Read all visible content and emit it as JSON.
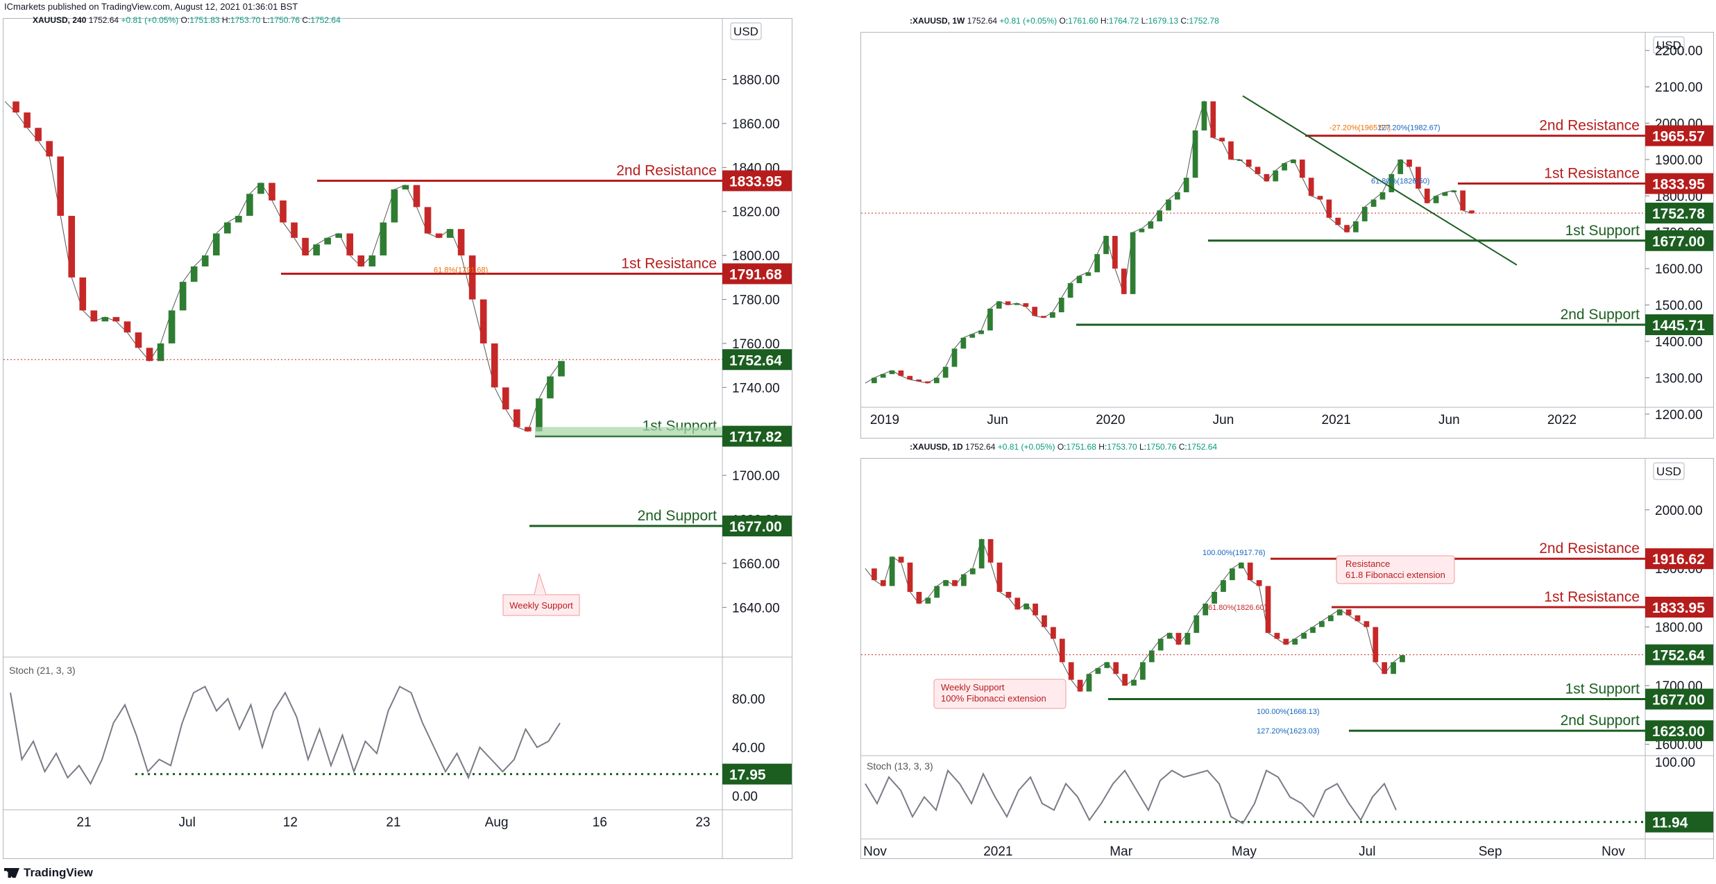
{
  "publisher_line": "ICmarkets published on TradingView.com, August 12, 2021 01:36:01 BST",
  "brand": "TradingView",
  "colors": {
    "red": "#b71c1c",
    "green": "#1b5e20",
    "zone": "#a5d6a7",
    "price_line": "#9e9e9e"
  },
  "charts": [
    {
      "id": "left",
      "symbol": "XAUUSD, 240",
      "ohlc": {
        "last": "1752.64",
        "chg": "+0.81 (+0.05%)",
        "o": "1751.83",
        "h": "1753.70",
        "l": "1750.76",
        "c": "1752.64"
      },
      "currency": "USD",
      "y_ticks": [
        "1880.00",
        "1860.00",
        "1840.00",
        "1820.00",
        "1800.00",
        "1780.00",
        "1760.00",
        "1740.00",
        "1720.00",
        "1700.00",
        "1680.00",
        "1660.00",
        "1640.00"
      ],
      "x_ticks": [
        "21",
        "Jul",
        "12",
        "21",
        "Aug",
        "16",
        "23"
      ],
      "osc_label": "Stoch (21, 3, 3)",
      "osc_ticks": [
        "80.00",
        "40.00",
        "0.00"
      ],
      "osc_level": "17.95",
      "levels": [
        {
          "label": "2nd Resistance",
          "value": "1833.95",
          "type": "res"
        },
        {
          "label": "1st Resistance",
          "value": "1791.68",
          "type": "res"
        },
        {
          "label": "1st Support",
          "value": "1717.82",
          "type": "sup"
        },
        {
          "label": "2nd Support",
          "value": "1677.00",
          "type": "sup"
        }
      ],
      "last_price": "1752.64",
      "callouts": [
        {
          "text": "Weekly Support"
        }
      ],
      "fib_labels": [
        "61.8%(1791.68)"
      ]
    },
    {
      "id": "weekly",
      "symbol": ":XAUUSD, 1W",
      "ohlc": {
        "last": "1752.64",
        "chg": "+0.81 (+0.05%)",
        "o": "1761.60",
        "h": "1764.72",
        "l": "1679.13",
        "c": "1752.78"
      },
      "currency": "USD",
      "y_ticks": [
        "2200.00",
        "2100.00",
        "2000.00",
        "1900.00",
        "1800.00",
        "1700.00",
        "1600.00",
        "1500.00",
        "1400.00",
        "1300.00",
        "1200.00"
      ],
      "x_ticks": [
        "2019",
        "Jun",
        "2020",
        "Jun",
        "2021",
        "Jun",
        "2022"
      ],
      "levels": [
        {
          "label": "2nd Resistance",
          "value": "1965.57",
          "type": "res"
        },
        {
          "label": "1st Resistance",
          "value": "1833.95",
          "type": "res"
        },
        {
          "label": "1st Support",
          "value": "1677.00",
          "type": "sup"
        },
        {
          "label": "2nd Support",
          "value": "1445.71",
          "type": "sup"
        }
      ],
      "last_price": "1752.78",
      "fib_labels": [
        "-27.20%(1965.57)",
        "127.20%(1982.67)",
        "61.80%(1826.50)"
      ]
    },
    {
      "id": "daily",
      "symbol": ":XAUUSD, 1D",
      "ohlc": {
        "last": "1752.64",
        "chg": "+0.81 (+0.05%)",
        "o": "1751.68",
        "h": "1753.70",
        "l": "1750.76",
        "c": "1752.64"
      },
      "currency": "USD",
      "y_ticks": [
        "2000.00",
        "1900.00",
        "1800.00",
        "1700.00",
        "1600.00"
      ],
      "x_ticks": [
        "Nov",
        "2021",
        "Mar",
        "May",
        "Jul",
        "Sep",
        "Nov"
      ],
      "osc_label": "Stoch (13, 3, 3)",
      "osc_ticks": [
        "100.00"
      ],
      "osc_level": "11.94",
      "levels": [
        {
          "label": "2nd Resistance",
          "value": "1916.62",
          "type": "res"
        },
        {
          "label": "1st Resistance",
          "value": "1833.95",
          "type": "res"
        },
        {
          "label": "1st Support",
          "value": "1677.00",
          "type": "sup"
        },
        {
          "label": "2nd Support",
          "value": "1623.00",
          "type": "sup"
        }
      ],
      "last_price": "1752.64",
      "callouts": [
        {
          "text": "Resistance",
          "text2": "61.8 Fibonacci extension"
        },
        {
          "text": "Weekly Support",
          "text2": "100% Fibonacci extension"
        }
      ],
      "fib_labels": [
        "100.00%(1917.76)",
        "61.80%(1826.60)",
        "100.00%(1668.13)",
        "127.20%(1623.03)"
      ]
    }
  ],
  "chart_data": [
    {
      "type": "line",
      "title": "XAUUSD, 240",
      "xlabel": "",
      "ylabel": "",
      "ylim": [
        1630,
        1895
      ],
      "series": [
        {
          "values": [
            1870,
            1865,
            1858,
            1852,
            1845,
            1818,
            1790,
            1775,
            1770,
            1772,
            1770,
            1765,
            1758,
            1752,
            1760,
            1775,
            1788,
            1795,
            1800,
            1810,
            1815,
            1818,
            1828,
            1833,
            1825,
            1815,
            1808,
            1800,
            1805,
            1808,
            1810,
            1800,
            1795,
            1800,
            1815,
            1830,
            1832,
            1822,
            1810,
            1808,
            1812,
            1800,
            1780,
            1760,
            1740,
            1730,
            1722,
            1720,
            1735,
            1745,
            1752
          ]
        }
      ],
      "levels": [
        1833.95,
        1791.68,
        1717.82,
        1677.0
      ],
      "last": 1752.64
    },
    {
      "type": "line",
      "title": "XAUUSD, 1W",
      "xlabel": "",
      "ylabel": "",
      "ylim": [
        1190,
        2230
      ],
      "series": [
        {
          "values": [
            1285,
            1300,
            1310,
            1320,
            1305,
            1295,
            1290,
            1285,
            1300,
            1330,
            1380,
            1410,
            1420,
            1430,
            1490,
            1510,
            1500,
            1505,
            1495,
            1470,
            1465,
            1480,
            1520,
            1560,
            1580,
            1590,
            1640,
            1690,
            1600,
            1530,
            1700,
            1710,
            1730,
            1760,
            1790,
            1810,
            1850,
            1980,
            2060,
            1960,
            1950,
            1900,
            1900,
            1880,
            1860,
            1840,
            1870,
            1890,
            1900,
            1850,
            1800,
            1790,
            1740,
            1720,
            1700,
            1730,
            1770,
            1790,
            1810,
            1860,
            1900,
            1880,
            1820,
            1780,
            1800,
            1810,
            1815,
            1760,
            1752
          ]
        }
      ],
      "levels": [
        1965.57,
        1833.95,
        1677.0,
        1445.71
      ],
      "last": 1752.78
    },
    {
      "type": "line",
      "title": "XAUUSD, 1D",
      "xlabel": "",
      "ylabel": "",
      "ylim": [
        1590,
        2040
      ],
      "series": [
        {
          "values": [
            1900,
            1880,
            1870,
            1920,
            1910,
            1860,
            1840,
            1850,
            1870,
            1880,
            1870,
            1890,
            1900,
            1950,
            1910,
            1860,
            1850,
            1830,
            1840,
            1820,
            1800,
            1780,
            1740,
            1710,
            1690,
            1720,
            1730,
            1740,
            1720,
            1700,
            1710,
            1740,
            1760,
            1780,
            1790,
            1770,
            1790,
            1820,
            1840,
            1860,
            1880,
            1900,
            1910,
            1880,
            1870,
            1790,
            1780,
            1770,
            1780,
            1790,
            1800,
            1810,
            1820,
            1830,
            1820,
            1810,
            1800,
            1740,
            1720,
            1740,
            1752
          ]
        }
      ],
      "levels": [
        1916.62,
        1833.95,
        1677.0,
        1623.0
      ],
      "last": 1752.64
    }
  ]
}
